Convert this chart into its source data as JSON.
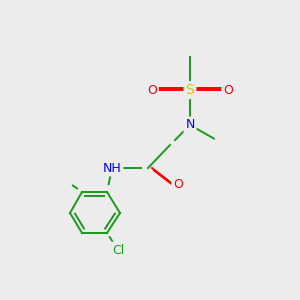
{
  "background_color": "#ececec",
  "atom_colors": {
    "C": "#1a9a1a",
    "N": "#0000ff",
    "O": "#ff0000",
    "S": "#cccc00",
    "Cl": "#1a9a1a",
    "H": "#000000"
  },
  "figsize": [
    3.0,
    3.0
  ],
  "dpi": 100,
  "bond_color": "#1a9a1a",
  "bond_lw": 1.4
}
